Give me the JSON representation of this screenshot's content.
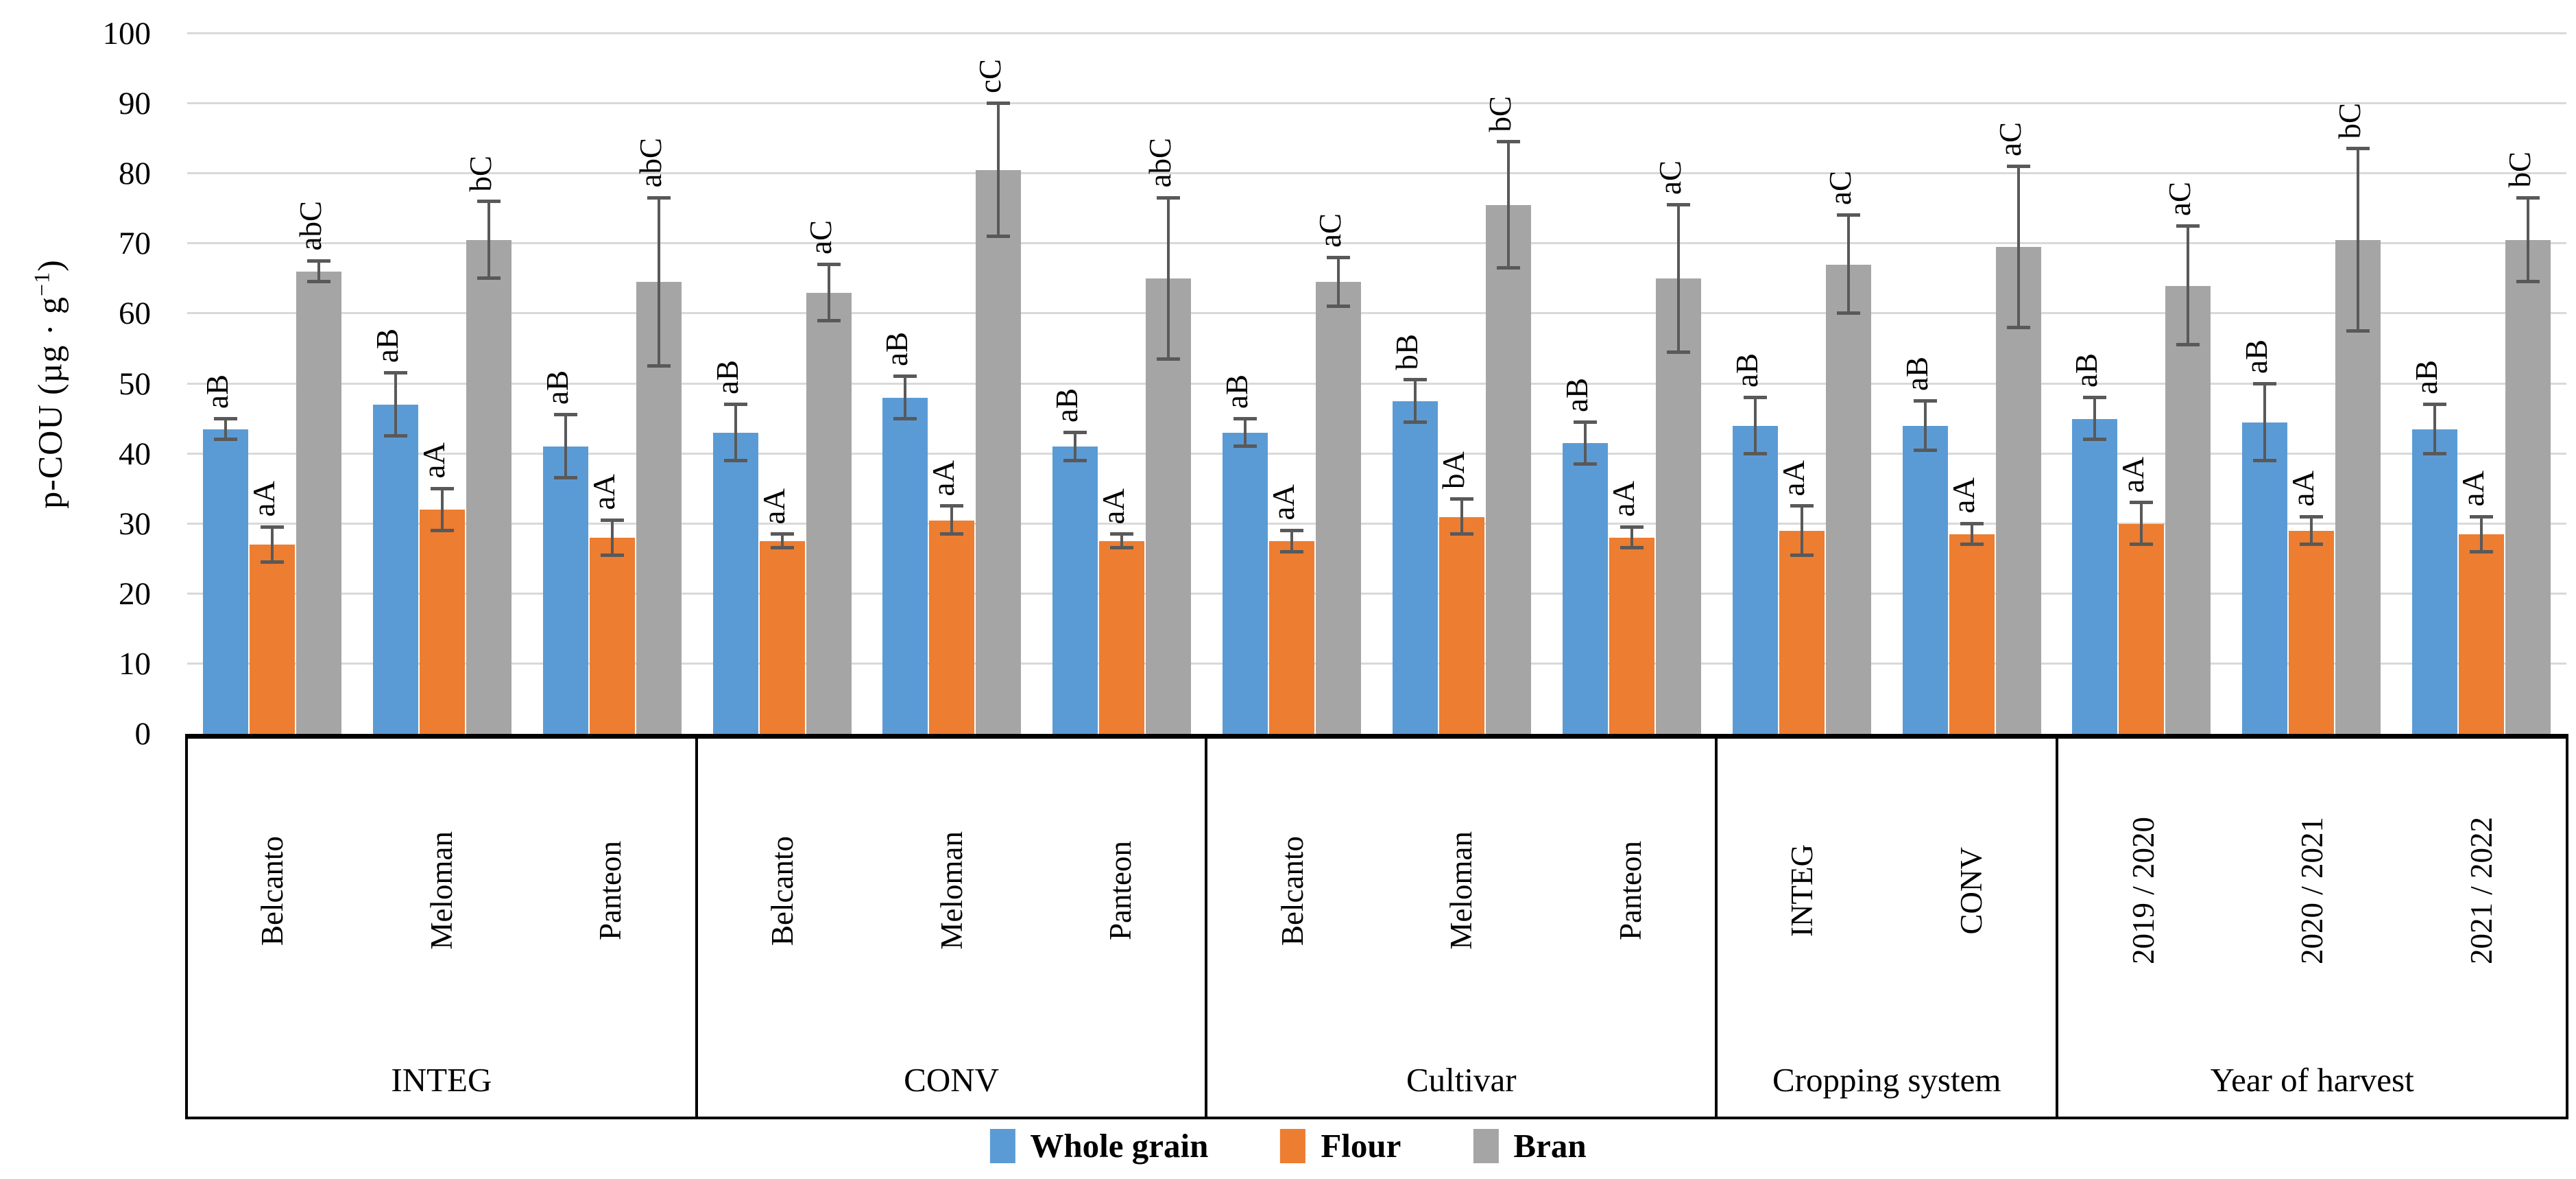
{
  "y_axis": {
    "title_prefix": "p-COU (µg · g",
    "title_sup": "−1",
    "title_suffix": ")",
    "min": 0,
    "max": 100,
    "step": 10
  },
  "chart_data": {
    "type": "bar",
    "title": "",
    "xlabel": "",
    "ylabel": "p-COU (µg · g−1)",
    "ylim": [
      0,
      100
    ],
    "ytick_step": 10,
    "grid": true,
    "legend_position": "bottom",
    "gridline_color": "#D9D9D9",
    "error_bar_color": "#595959",
    "groups": [
      {
        "label": "INTEG",
        "categories": [
          "Belcanto",
          "Meloman",
          "Panteon"
        ]
      },
      {
        "label": "CONV",
        "categories": [
          "Belcanto",
          "Meloman",
          "Panteon"
        ]
      },
      {
        "label": "Cultivar",
        "categories": [
          "Belcanto",
          "Meloman",
          "Panteon"
        ]
      },
      {
        "label": "Cropping system",
        "categories": [
          "INTEG",
          "CONV"
        ]
      },
      {
        "label": "Year of harvest",
        "categories": [
          "2019 / 2020",
          "2020 / 2021",
          "2021 / 2022"
        ]
      }
    ],
    "series": [
      {
        "name": "Whole grain",
        "color": "#5B9BD5",
        "values": [
          43.5,
          47,
          41,
          43,
          48,
          41,
          43,
          47.5,
          41.5,
          44,
          44,
          45,
          44.5,
          43.5
        ],
        "errors": [
          1.5,
          4.5,
          4.5,
          4,
          3,
          2,
          2,
          3,
          3,
          4,
          3.5,
          3,
          5.5,
          3.5
        ],
        "labels": [
          "aB",
          "aB",
          "aB",
          "aB",
          "aB",
          "aB",
          "aB",
          "bB",
          "aB",
          "aB",
          "aB",
          "aB",
          "aB",
          "aB"
        ]
      },
      {
        "name": "Flour",
        "color": "#ED7D31",
        "values": [
          27,
          32,
          28,
          27.5,
          30.5,
          27.5,
          27.5,
          31,
          28,
          29,
          28.5,
          30,
          29,
          28.5
        ],
        "errors": [
          2.5,
          3,
          2.5,
          1,
          2,
          1,
          1.5,
          2.5,
          1.5,
          3.5,
          1.5,
          3,
          2,
          2.5
        ],
        "labels": [
          "aA",
          "aA",
          "aA",
          "aA",
          "aA",
          "aA",
          "aA",
          "bA",
          "aA",
          "aA",
          "aA",
          "aA",
          "aA",
          "aA"
        ]
      },
      {
        "name": "Bran",
        "color": "#A5A5A5",
        "values": [
          66,
          70.5,
          64.5,
          63,
          80.5,
          65,
          64.5,
          75.5,
          65,
          67,
          69.5,
          64,
          70.5,
          70.5
        ],
        "errors": [
          1.5,
          5.5,
          12,
          4,
          9.5,
          11.5,
          3.5,
          9,
          10.5,
          7,
          11.5,
          8.5,
          13,
          6
        ],
        "labels": [
          "abC",
          "bC",
          "abC",
          "aC",
          "cC",
          "abC",
          "aC",
          "bC",
          "aC",
          "aC",
          "aC",
          "aC",
          "bC",
          "bC"
        ]
      }
    ]
  }
}
